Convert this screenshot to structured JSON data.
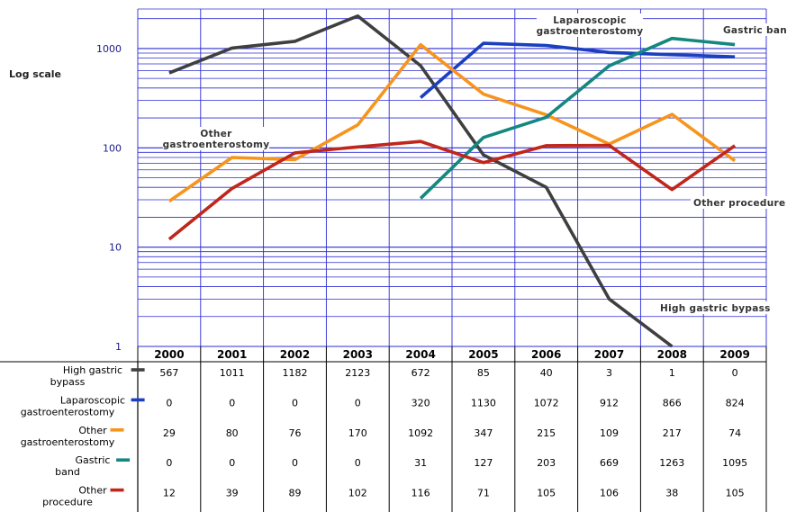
{
  "chart_data": {
    "type": "line",
    "ylabel": "Log scale",
    "yscale": "log",
    "ylim": [
      1,
      2500
    ],
    "y_ticks": [
      "1",
      "10",
      "100",
      "1000"
    ],
    "grid": true,
    "categories": [
      "2000",
      "2001",
      "2002",
      "2003",
      "2004",
      "2005",
      "2006",
      "2007",
      "2008",
      "2009"
    ],
    "series": [
      {
        "name": "High gastric bypass",
        "label_lines": [
          "High gastric",
          "bypass"
        ],
        "color": "#3f3f3f",
        "values": [
          567,
          1011,
          1182,
          2123,
          672,
          85,
          40,
          3,
          1,
          0
        ]
      },
      {
        "name": "Laparoscopic gastroenterostomy",
        "label_lines": [
          "Laparoscopic",
          "gastroenterostomy"
        ],
        "color": "#1a3fbf",
        "values": [
          0,
          0,
          0,
          0,
          320,
          1130,
          1072,
          912,
          866,
          824
        ]
      },
      {
        "name": "Other gastroenterostomy",
        "label_lines": [
          "Other",
          "gastroenterostomy"
        ],
        "color": "#f7941d",
        "values": [
          29,
          80,
          76,
          170,
          1092,
          347,
          215,
          109,
          217,
          74
        ]
      },
      {
        "name": "Gastric band",
        "label_lines": [
          "Gastric",
          "band"
        ],
        "color": "#14877f",
        "values": [
          0,
          0,
          0,
          0,
          31,
          127,
          203,
          669,
          1263,
          1095
        ]
      },
      {
        "name": "Other procedure",
        "label_lines": [
          "Other",
          "procedure"
        ],
        "color": "#c0261a",
        "values": [
          12,
          39,
          89,
          102,
          116,
          71,
          105,
          106,
          38,
          105
        ]
      }
    ],
    "annotations": [
      {
        "id": "lap",
        "lines": [
          "Laparoscopic",
          "gastroenterostomy"
        ]
      },
      {
        "id": "band",
        "lines": [
          "Gastric band"
        ]
      },
      {
        "id": "othg",
        "lines": [
          "Other",
          "gastroenterostomy"
        ]
      },
      {
        "id": "othp",
        "lines": [
          "Other procedure"
        ]
      },
      {
        "id": "hgb",
        "lines": [
          "High gastric bypass"
        ]
      }
    ]
  }
}
